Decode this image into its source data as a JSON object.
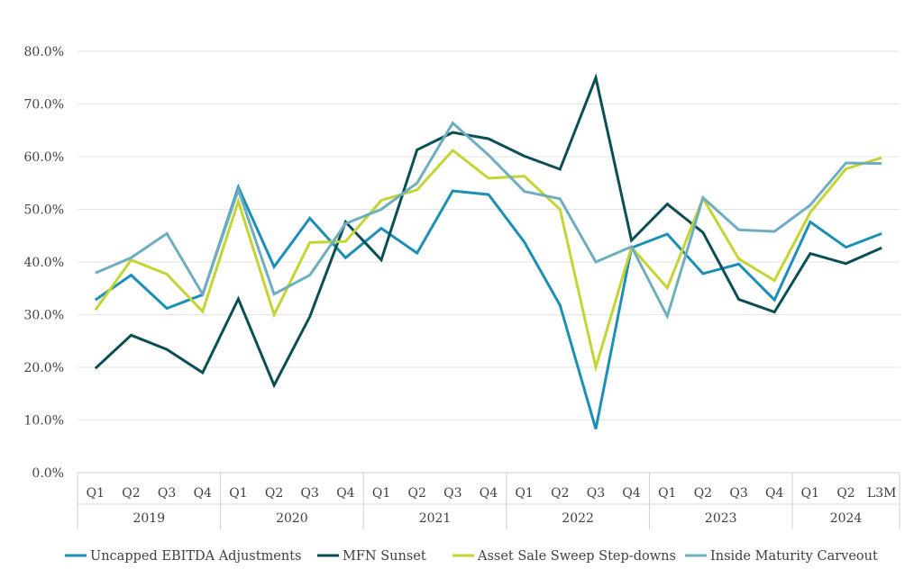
{
  "chart_data": {
    "type": "line",
    "title": "",
    "xlabel": "",
    "ylabel": "",
    "ylim": [
      0,
      80
    ],
    "y_ticks": [
      "0.0%",
      "10.0%",
      "20.0%",
      "30.0%",
      "40.0%",
      "50.0%",
      "60.0%",
      "70.0%",
      "80.0%"
    ],
    "grid": "horizontal",
    "legend_position": "bottom",
    "groups": [
      {
        "label": "2019",
        "categories": [
          "Q1",
          "Q2",
          "Q3",
          "Q4"
        ]
      },
      {
        "label": "2020",
        "categories": [
          "Q1",
          "Q2",
          "Q3",
          "Q4"
        ]
      },
      {
        "label": "2021",
        "categories": [
          "Q1",
          "Q2",
          "Q3",
          "Q4"
        ]
      },
      {
        "label": "2022",
        "categories": [
          "Q1",
          "Q2",
          "Q3",
          "Q4"
        ]
      },
      {
        "label": "2023",
        "categories": [
          "Q1",
          "Q2",
          "Q3",
          "Q4"
        ]
      },
      {
        "label": "2024",
        "categories": [
          "Q1",
          "Q2",
          "L3M"
        ]
      }
    ],
    "series": [
      {
        "name": "Uncapped EBITDA Adjustments",
        "color": "#1b8fb5",
        "values": [
          32.8,
          37.5,
          31.2,
          33.8,
          54.2,
          39.1,
          48.3,
          40.8,
          46.4,
          41.7,
          53.5,
          52.8,
          43.8,
          31.8,
          8.3,
          42.7,
          45.3,
          37.8,
          39.6,
          32.8,
          47.6,
          42.8,
          45.4
        ]
      },
      {
        "name": "MFN Sunset",
        "color": "#0b4f55",
        "values": [
          19.8,
          26.1,
          23.4,
          19.0,
          33.0,
          16.6,
          29.6,
          47.6,
          40.4,
          61.3,
          64.6,
          63.4,
          60.1,
          57.6,
          75.0,
          44.1,
          51.0,
          45.6,
          32.9,
          30.5,
          41.6,
          39.7,
          42.7
        ]
      },
      {
        "name": "Asset Sale Sweep Step-downs",
        "color": "#c3d434",
        "values": [
          30.9,
          40.4,
          37.7,
          30.6,
          51.5,
          30.0,
          43.7,
          43.9,
          51.7,
          53.7,
          61.2,
          55.9,
          56.3,
          50.0,
          20.0,
          42.8,
          35.1,
          52.1,
          40.6,
          36.5,
          49.4,
          57.7,
          59.8
        ]
      },
      {
        "name": "Inside Maturity Carveout",
        "color": "#6fadbf",
        "values": [
          37.9,
          40.8,
          45.4,
          33.9,
          53.7,
          33.9,
          37.5,
          47.3,
          50.0,
          55.0,
          66.4,
          60.3,
          53.4,
          52.0,
          40.0,
          42.9,
          29.7,
          52.2,
          46.1,
          45.8,
          50.8,
          58.8,
          58.7
        ]
      }
    ]
  }
}
